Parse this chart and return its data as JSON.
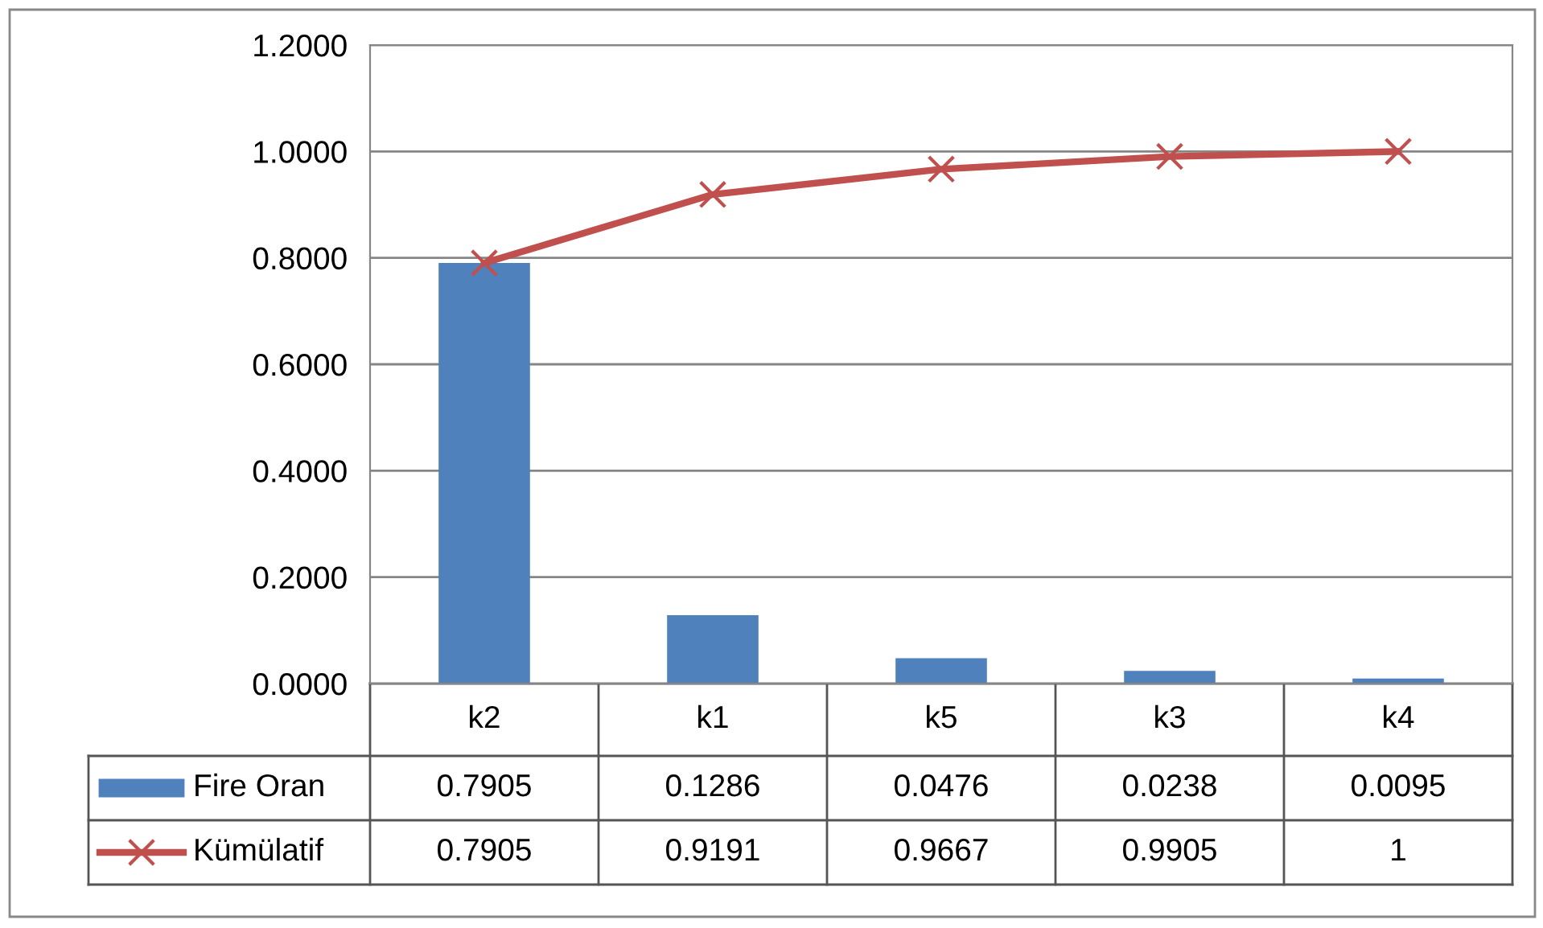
{
  "chart_data": {
    "type": "bar",
    "categories": [
      "k2",
      "k1",
      "k5",
      "k3",
      "k4"
    ],
    "series": [
      {
        "name": "Fire Oran",
        "color": "#4f81bd",
        "values": [
          0.7905,
          0.1286,
          0.0476,
          0.0238,
          0.0095
        ]
      },
      {
        "name": "Kümülatif",
        "type": "line",
        "color": "#c0504d",
        "marker": "cross",
        "values": [
          0.7905,
          0.9191,
          0.9667,
          0.9905,
          1
        ]
      }
    ],
    "ylim": [
      0,
      1.2
    ],
    "yticks": [
      {
        "value": 0,
        "label": "0.0000"
      },
      {
        "value": 0.2,
        "label": "0.2000"
      },
      {
        "value": 0.4,
        "label": "0.4000"
      },
      {
        "value": 0.6,
        "label": "0.6000"
      },
      {
        "value": 0.8,
        "label": "0.8000"
      },
      {
        "value": 1.0,
        "label": "1.0000"
      },
      {
        "value": 1.2,
        "label": "1.2000"
      }
    ],
    "grid": "y",
    "legend": "bottom",
    "data_labels": true
  }
}
